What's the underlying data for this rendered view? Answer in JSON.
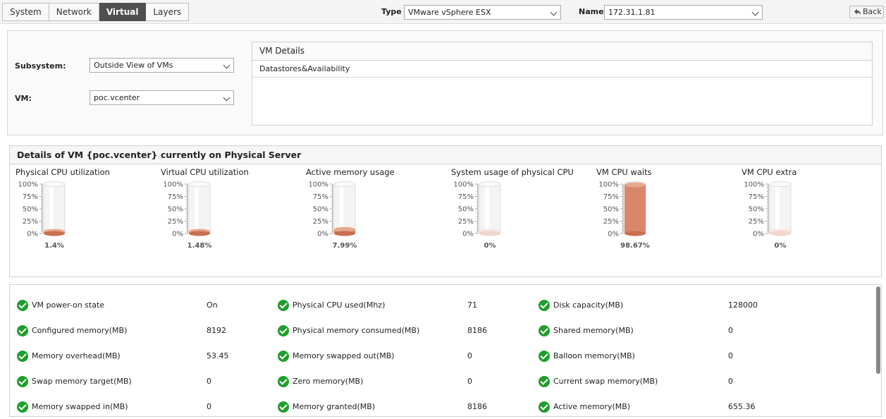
{
  "tabs": [
    {
      "label": "System",
      "active": false
    },
    {
      "label": "Network",
      "active": false
    },
    {
      "label": "Virtual",
      "active": true
    },
    {
      "label": "Layers",
      "active": false
    }
  ],
  "header": {
    "type_label": "Type",
    "type_value": "VMware vSphere ESX",
    "name_label": "Name",
    "name_value": "172.31.1.81",
    "back_label": "Back"
  },
  "filters": {
    "subsystem_label": "Subsystem:",
    "subsystem_value": "Outside View of VMs",
    "vm_label": "VM:",
    "vm_value": "poc.vcenter"
  },
  "vm_details": {
    "title": "VM Details",
    "items": [
      "Datastores&Availability"
    ]
  },
  "gauges_panel": {
    "title": "Details of VM {poc.vcenter} currently on Physical Server",
    "ticks": [
      "100%",
      "75%",
      "50%",
      "25%",
      "0%"
    ],
    "fill_color": "#d9876a",
    "gauges": [
      {
        "title": "Physical CPU utilization",
        "value_text": "1.4%",
        "value": 1.4
      },
      {
        "title": "Virtual CPU utilization",
        "value_text": "1.48%",
        "value": 1.48
      },
      {
        "title": "Active memory usage",
        "value_text": "7.99%",
        "value": 7.99
      },
      {
        "title": "System usage of physical CPU",
        "value_text": "0%",
        "value": 0
      },
      {
        "title": "VM CPU waits",
        "value_text": "98.67%",
        "value": 98.67
      },
      {
        "title": "VM CPU extra",
        "value_text": "0%",
        "value": 0
      }
    ]
  },
  "metrics": [
    [
      {
        "name": "VM power-on state",
        "value": "On"
      },
      {
        "name": "Physical CPU used(Mhz)",
        "value": "71"
      },
      {
        "name": "Disk capacity(MB)",
        "value": "128000"
      }
    ],
    [
      {
        "name": "Configured memory(MB)",
        "value": "8192"
      },
      {
        "name": "Physical memory consumed(MB)",
        "value": "8186"
      },
      {
        "name": "Shared memory(MB)",
        "value": "0"
      }
    ],
    [
      {
        "name": "Memory overhead(MB)",
        "value": "53.45"
      },
      {
        "name": "Memory swapped out(MB)",
        "value": "0"
      },
      {
        "name": "Balloon memory(MB)",
        "value": "0"
      }
    ],
    [
      {
        "name": "Swap memory target(MB)",
        "value": "0"
      },
      {
        "name": "Zero memory(MB)",
        "value": "0"
      },
      {
        "name": "Current swap memory(MB)",
        "value": "0"
      }
    ],
    [
      {
        "name": "Memory swapped in(MB)",
        "value": "0"
      },
      {
        "name": "Memory granted(MB)",
        "value": "8186"
      },
      {
        "name": "Active memory(MB)",
        "value": "655.36"
      }
    ]
  ],
  "status_color": "#1f9e2b"
}
